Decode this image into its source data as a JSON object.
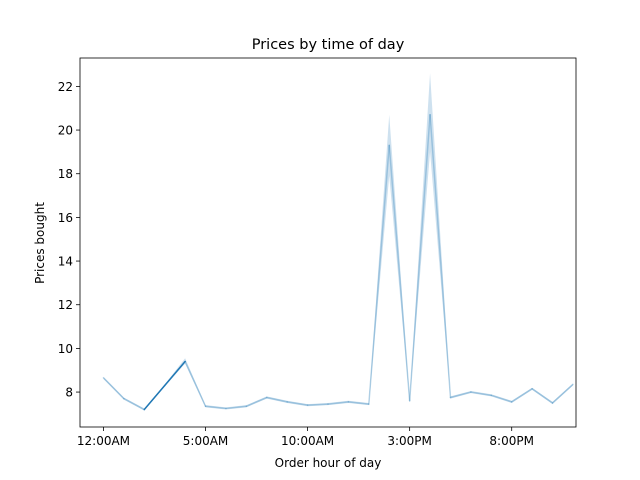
{
  "chart_data": {
    "type": "line",
    "title": "Prices by time of day",
    "xlabel": "Order hour of day",
    "ylabel": "Prices bought",
    "xlim": [
      -1.15,
      23.15
    ],
    "ylim": [
      6.4,
      23.3
    ],
    "grid": false,
    "x_ticks": [
      {
        "value": 0,
        "label": "12:00AM"
      },
      {
        "value": 5,
        "label": "5:00AM"
      },
      {
        "value": 10,
        "label": "10:00AM"
      },
      {
        "value": 15,
        "label": "3:00PM"
      },
      {
        "value": 20,
        "label": "8:00PM"
      }
    ],
    "y_ticks": [
      8,
      10,
      12,
      14,
      16,
      18,
      20,
      22
    ],
    "colors": {
      "line": "#1f77b4",
      "band": "#1f77b4"
    },
    "series": [
      {
        "x": [
          0,
          1,
          2,
          3,
          4,
          5,
          6,
          7,
          8,
          9,
          10,
          11,
          12,
          13,
          14,
          15,
          16,
          17,
          18,
          19,
          20,
          21,
          22,
          23
        ],
        "values": [
          8.65,
          7.7,
          7.2,
          8.3,
          9.4,
          7.35,
          7.25,
          7.35,
          7.75,
          7.55,
          7.4,
          7.45,
          7.55,
          7.45,
          19.3,
          7.6,
          20.7,
          7.75,
          8.0,
          7.85,
          7.55,
          8.15,
          7.5,
          8.35
        ],
        "ci_low": [
          8.6,
          7.65,
          7.15,
          8.25,
          9.3,
          7.3,
          7.2,
          7.3,
          7.7,
          7.5,
          7.35,
          7.4,
          7.5,
          7.4,
          17.9,
          7.55,
          19.0,
          7.7,
          7.95,
          7.8,
          7.5,
          8.1,
          7.45,
          8.3
        ],
        "ci_high": [
          8.7,
          7.75,
          7.25,
          8.35,
          9.55,
          7.4,
          7.3,
          7.4,
          7.8,
          7.6,
          7.45,
          7.5,
          7.6,
          7.5,
          20.7,
          7.65,
          22.6,
          7.8,
          8.05,
          7.9,
          7.6,
          8.2,
          7.55,
          8.4
        ]
      }
    ]
  }
}
